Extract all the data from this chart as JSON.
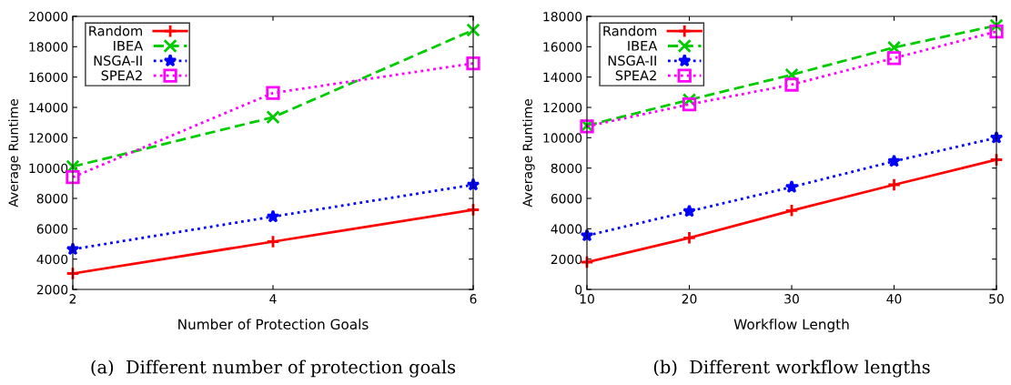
{
  "chart_data": [
    {
      "type": "line",
      "x": [
        2,
        4,
        6
      ],
      "xlabel": "Number of Protection Goals",
      "ylabel": "Average Runtime",
      "xlim": [
        2,
        6
      ],
      "xticks": [
        2,
        4,
        6
      ],
      "ylim": [
        2000,
        20000
      ],
      "yticks": [
        2000,
        4000,
        6000,
        8000,
        10000,
        12000,
        14000,
        16000,
        18000,
        20000
      ],
      "legend": "top left",
      "grid": false,
      "annotations": [
        "(a)  Different number of protection goals"
      ],
      "series": [
        {
          "name": "Random",
          "color": "#ff0000",
          "marker": "plus",
          "line_style": "solid",
          "values": [
            3050,
            5150,
            7250
          ]
        },
        {
          "name": "IBEA",
          "color": "#00cc00",
          "marker": "x",
          "line_style": "dashed",
          "values": [
            10100,
            13350,
            19100
          ]
        },
        {
          "name": "NSGA-II",
          "color": "#0000ff",
          "marker": "star",
          "line_style": "dotted",
          "values": [
            4650,
            6800,
            8900
          ]
        },
        {
          "name": "SPEA2",
          "color": "#ff00ff",
          "marker": "square",
          "line_style": "dotted",
          "values": [
            9400,
            14950,
            16900
          ]
        }
      ]
    },
    {
      "type": "line",
      "x": [
        10,
        20,
        30,
        40,
        50
      ],
      "xlabel": "Workflow Length",
      "ylabel": "Average Runtime",
      "xlim": [
        10,
        50
      ],
      "xticks": [
        10,
        20,
        30,
        40,
        50
      ],
      "ylim": [
        0,
        18000
      ],
      "yticks": [
        0,
        2000,
        4000,
        6000,
        8000,
        10000,
        12000,
        14000,
        16000,
        18000
      ],
      "legend": "top left",
      "grid": false,
      "annotations": [
        "(b)  Different workflow lengths"
      ],
      "series": [
        {
          "name": "Random",
          "color": "#ff0000",
          "marker": "plus",
          "line_style": "solid",
          "values": [
            1800,
            3400,
            5200,
            6900,
            8550
          ]
        },
        {
          "name": "IBEA",
          "color": "#00cc00",
          "marker": "x",
          "line_style": "dashed",
          "values": [
            10800,
            12500,
            14150,
            15950,
            17400
          ]
        },
        {
          "name": "NSGA-II",
          "color": "#0000ff",
          "marker": "star",
          "line_style": "dotted",
          "values": [
            3550,
            5150,
            6750,
            8450,
            10000
          ]
        },
        {
          "name": "SPEA2",
          "color": "#ff00ff",
          "marker": "square",
          "line_style": "dotted",
          "values": [
            10750,
            12200,
            13500,
            15250,
            17000
          ]
        }
      ]
    }
  ]
}
